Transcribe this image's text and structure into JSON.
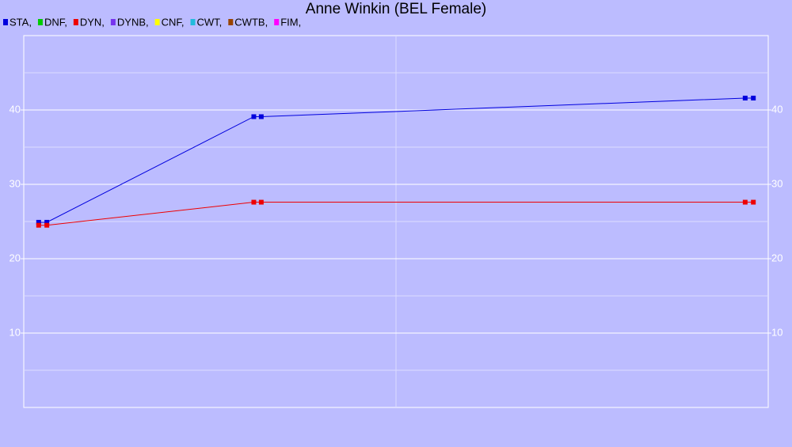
{
  "chart_data": {
    "type": "line",
    "title": "Anne Winkin (BEL Female)",
    "x": [
      2.0,
      3.1,
      30.9,
      31.9,
      96.9,
      98.0
    ],
    "xlim": [
      0,
      100
    ],
    "xticks": [
      50
    ],
    "ylim": [
      0,
      50
    ],
    "yticks": [
      10,
      20,
      30,
      40
    ],
    "yminor": [
      5,
      15,
      25,
      35,
      45
    ],
    "grid": true,
    "series": [
      {
        "name": "STA,",
        "color": "#0000dd",
        "values": [
          24.9,
          24.9,
          39.1,
          39.1,
          41.6,
          41.6
        ]
      },
      {
        "name": "DNF,",
        "color": "#00cc00"
      },
      {
        "name": "DYN,",
        "color": "#ee0000",
        "values": [
          24.5,
          24.5,
          27.6,
          27.6,
          27.6,
          27.6
        ]
      },
      {
        "name": "DYNB,",
        "color": "#7733ee"
      },
      {
        "name": "CNF,",
        "color": "#ffff00"
      },
      {
        "name": "CWT,",
        "color": "#22bbdd"
      },
      {
        "name": "CWTB,",
        "color": "#994400"
      },
      {
        "name": "FIM,",
        "color": "#ff00ff"
      }
    ]
  }
}
